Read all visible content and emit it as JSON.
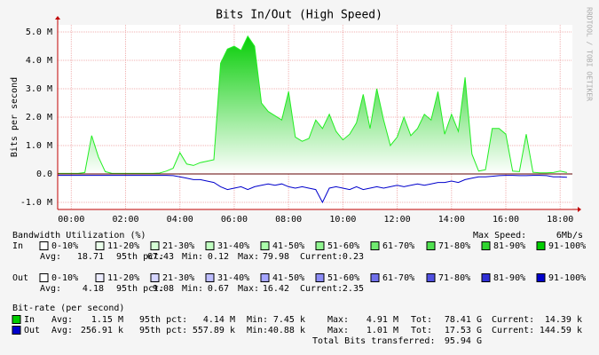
{
  "chart_data": {
    "type": "area",
    "title": "Bits In/Out (High Speed)",
    "y_label": "Bits per second",
    "side_text": "RRDTOOL / TOBI OETIKER",
    "x": [
      -0.5,
      -0.25,
      0,
      0.25,
      0.5,
      0.75,
      1,
      1.25,
      1.5,
      1.75,
      2,
      2.25,
      2.5,
      2.75,
      3,
      3.25,
      3.5,
      3.75,
      4,
      4.25,
      4.5,
      4.75,
      5,
      5.25,
      5.5,
      5.75,
      6,
      6.25,
      6.5,
      6.75,
      7,
      7.25,
      7.5,
      7.75,
      8,
      8.25,
      8.5,
      8.75,
      9,
      9.25,
      9.5,
      9.75,
      10,
      10.25,
      10.5,
      10.75,
      11,
      11.25,
      11.5,
      11.75,
      12,
      12.25,
      12.5,
      12.75,
      13,
      13.25,
      13.5,
      13.75,
      14,
      14.25,
      14.5,
      14.75,
      15,
      15.25,
      15.5,
      15.75,
      16,
      16.25,
      16.5,
      16.75,
      17,
      17.25,
      17.5,
      17.75,
      18,
      18.25
    ],
    "series": [
      {
        "name": "In",
        "color": "#00cc00",
        "values": [
          20000,
          20000,
          20000,
          20000,
          50000,
          1350000,
          600000,
          80000,
          20000,
          20000,
          20000,
          20000,
          20000,
          20000,
          20000,
          30000,
          100000,
          200000,
          750000,
          350000,
          300000,
          400000,
          450000,
          500000,
          3900000,
          4400000,
          4500000,
          4350000,
          4850000,
          4500000,
          2500000,
          2200000,
          2050000,
          1900000,
          2900000,
          1300000,
          1150000,
          1250000,
          1900000,
          1600000,
          2100000,
          1500000,
          1200000,
          1400000,
          1800000,
          2800000,
          1600000,
          3000000,
          1900000,
          1000000,
          1300000,
          2000000,
          1350000,
          1600000,
          2100000,
          1900000,
          2900000,
          1400000,
          2100000,
          1500000,
          3400000,
          700000,
          100000,
          150000,
          1600000,
          1600000,
          1400000,
          100000,
          80000,
          1400000,
          60000,
          40000,
          40000,
          50000,
          100000,
          50000
        ]
      },
      {
        "name": "Out",
        "color": "#0000cc",
        "values": [
          -50000,
          -50000,
          -50000,
          -50000,
          -50000,
          -50000,
          -50000,
          -50000,
          -50000,
          -50000,
          -50000,
          -50000,
          -50000,
          -50000,
          -50000,
          -50000,
          -50000,
          -60000,
          -100000,
          -150000,
          -200000,
          -200000,
          -250000,
          -300000,
          -450000,
          -550000,
          -500000,
          -450000,
          -550000,
          -450000,
          -400000,
          -350000,
          -400000,
          -350000,
          -450000,
          -500000,
          -450000,
          -500000,
          -550000,
          -1000000,
          -500000,
          -450000,
          -500000,
          -550000,
          -450000,
          -550000,
          -500000,
          -450000,
          -500000,
          -450000,
          -400000,
          -450000,
          -400000,
          -350000,
          -400000,
          -350000,
          -300000,
          -300000,
          -250000,
          -300000,
          -200000,
          -150000,
          -100000,
          -100000,
          -80000,
          -60000,
          -50000,
          -50000,
          -60000,
          -60000,
          -50000,
          -50000,
          -60000,
          -100000,
          -100000,
          -120000
        ]
      }
    ],
    "xlim": [
      -0.5,
      18.45
    ],
    "xticks": [
      {
        "value": 0,
        "label": "00:00"
      },
      {
        "value": 2,
        "label": "02:00"
      },
      {
        "value": 4,
        "label": "04:00"
      },
      {
        "value": 6,
        "label": "06:00"
      },
      {
        "value": 8,
        "label": "08:00"
      },
      {
        "value": 10,
        "label": "10:00"
      },
      {
        "value": 12,
        "label": "12:00"
      },
      {
        "value": 14,
        "label": "14:00"
      },
      {
        "value": 16,
        "label": "16:00"
      },
      {
        "value": 18,
        "label": "18:00"
      }
    ],
    "ylim": [
      -1250000,
      5250000
    ],
    "yticks": [
      {
        "value": 5000000,
        "label": "5.0 M"
      },
      {
        "value": 4000000,
        "label": "4.0 M"
      },
      {
        "value": 3000000,
        "label": "3.0 M"
      },
      {
        "value": 2000000,
        "label": "2.0 M"
      },
      {
        "value": 1000000,
        "label": "1.0 M"
      },
      {
        "value": 0,
        "label": "0.0"
      },
      {
        "value": -1000000,
        "label": "-1.0 M"
      }
    ],
    "grid": true
  },
  "utilization": {
    "heading": "Bandwidth Utilization (%)",
    "max_speed_label": "Max Speed:",
    "max_speed": "6Mb/s",
    "rows": [
      {
        "name": "In",
        "bins": [
          "0-10%",
          "11-20%",
          "21-30%",
          "31-40%",
          "41-50%",
          "51-60%",
          "61-70%",
          "71-80%",
          "81-90%",
          "91-100%"
        ],
        "bin_colors": [
          "#ffffff",
          "#eaffea",
          "#d5ffd5",
          "#c0ffc0",
          "#aaffaa",
          "#90f590",
          "#70ea70",
          "#50e050",
          "#30d530",
          "#00cc00"
        ],
        "stats": [
          [
            "Avg:",
            "18.71"
          ],
          [
            "95th pct:",
            "67.43"
          ],
          [
            "Min:",
            "0.12"
          ],
          [
            "Max:",
            "79.98"
          ],
          [
            "Current:",
            "0.23"
          ]
        ]
      },
      {
        "name": "Out",
        "bins": [
          "0-10%",
          "11-20%",
          "21-30%",
          "31-40%",
          "41-50%",
          "51-60%",
          "61-70%",
          "71-80%",
          "81-90%",
          "91-100%"
        ],
        "bin_colors": [
          "#ffffff",
          "#ececff",
          "#d5d5ff",
          "#bdbdff",
          "#a5a5ff",
          "#8c8cf5",
          "#7070ea",
          "#5050e0",
          "#3030d5",
          "#0000cc"
        ],
        "stats": [
          [
            "Avg:",
            "4.18"
          ],
          [
            "95th pct:",
            "9.08"
          ],
          [
            "Min:",
            "0.67"
          ],
          [
            "Max:",
            "16.42"
          ],
          [
            "Current:",
            "2.35"
          ]
        ]
      }
    ]
  },
  "bitrate": {
    "heading": "Bit-rate (per second)",
    "rows": [
      [
        [
          "Avg:",
          "1.15 M"
        ],
        [
          "95th pct:",
          "4.14 M"
        ],
        [
          "Min:",
          "7.45 k"
        ],
        [
          "Max:",
          "4.91 M"
        ],
        [
          "Tot:",
          "78.41 G"
        ],
        [
          "Current:",
          "14.39 k"
        ]
      ],
      [
        [
          "Avg:",
          "256.91 k"
        ],
        [
          "95th pct:",
          "557.89 k"
        ],
        [
          "Min:",
          "40.88 k"
        ],
        [
          "Max:",
          "1.01 M"
        ],
        [
          "Tot:",
          "17.53 G"
        ],
        [
          "Current:",
          "144.59 k"
        ]
      ]
    ],
    "total_label": "Total Bits transferred:",
    "total": "95.94 G"
  }
}
